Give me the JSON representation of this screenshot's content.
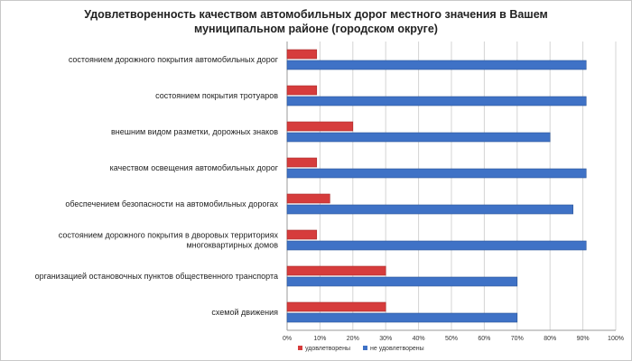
{
  "chart_data": {
    "type": "bar",
    "orientation": "horizontal",
    "title": "Удовлетворенность качеством автомобильных дорог местного значения в Вашем муниципальном районе (городском округе)",
    "categories": [
      [
        "состоянием дорожного покрытия автомобильных дорог"
      ],
      [
        "состоянием покрытия тротуаров"
      ],
      [
        "внешним видом разметки, дорожных знаков"
      ],
      [
        "качеством освещения автомобильных дорог"
      ],
      [
        "обеспечением безопасности на автомобильных дорогах"
      ],
      [
        "состоянием дорожного покрытия в дворовых территориях",
        "многоквартирных домов"
      ],
      [
        "организацией остановочных пунктов общественного транспорта"
      ],
      [
        "схемой движения"
      ]
    ],
    "series": [
      {
        "name": "удовлетворены",
        "color": "#d63c3c",
        "values": [
          9,
          9,
          20,
          9,
          13,
          9,
          30,
          30
        ]
      },
      {
        "name": "не удовлетворены",
        "color": "#3f72c6",
        "values": [
          91,
          91,
          80,
          91,
          87,
          91,
          70,
          70
        ]
      }
    ],
    "xlim": [
      0,
      100
    ],
    "xticks": [
      "0%",
      "10%",
      "20%",
      "30%",
      "40%",
      "50%",
      "60%",
      "70%",
      "80%",
      "90%",
      "100%"
    ],
    "grid": true,
    "legend": "bottom"
  }
}
